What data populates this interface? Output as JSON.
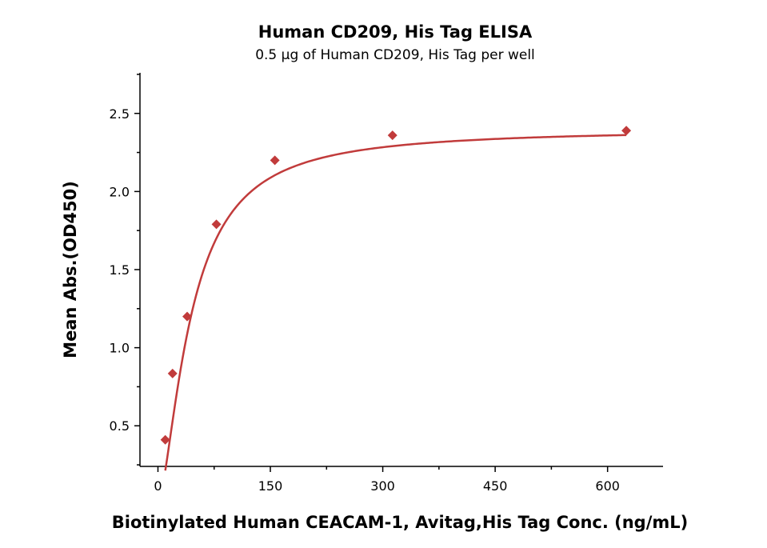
{
  "chart_data": {
    "type": "scatter",
    "title": "Human CD209, His Tag ELISA",
    "subtitle": "0.5 μg of Human CD209, His Tag per well",
    "xlabel": "Biotinylated Human CEACAM-1, Avitag,His Tag Conc. (ng/mL)",
    "ylabel": "Mean Abs.(OD450)",
    "xlim": [
      -24,
      674
    ],
    "ylim": [
      0.24,
      2.76
    ],
    "xticks": [
      0,
      150,
      300,
      450,
      600
    ],
    "yticks": [
      0.5,
      1.0,
      1.5,
      2.0,
      2.5
    ],
    "xtick_labels": [
      "0",
      "150",
      "300",
      "450",
      "600"
    ],
    "ytick_labels": [
      "0.5",
      "1.0",
      "1.5",
      "2.0",
      "2.5"
    ],
    "grid": false,
    "legend": "none",
    "series": [
      {
        "x": [
          9.8,
          19.5,
          39,
          78,
          156,
          313,
          625
        ],
        "y": [
          0.41,
          0.835,
          1.2,
          1.79,
          2.2,
          2.36,
          2.39
        ],
        "marker": "diamond",
        "color": "#c13b3b",
        "fit": "four-parameter logistic",
        "fit_color": "#c13b3b"
      }
    ]
  }
}
